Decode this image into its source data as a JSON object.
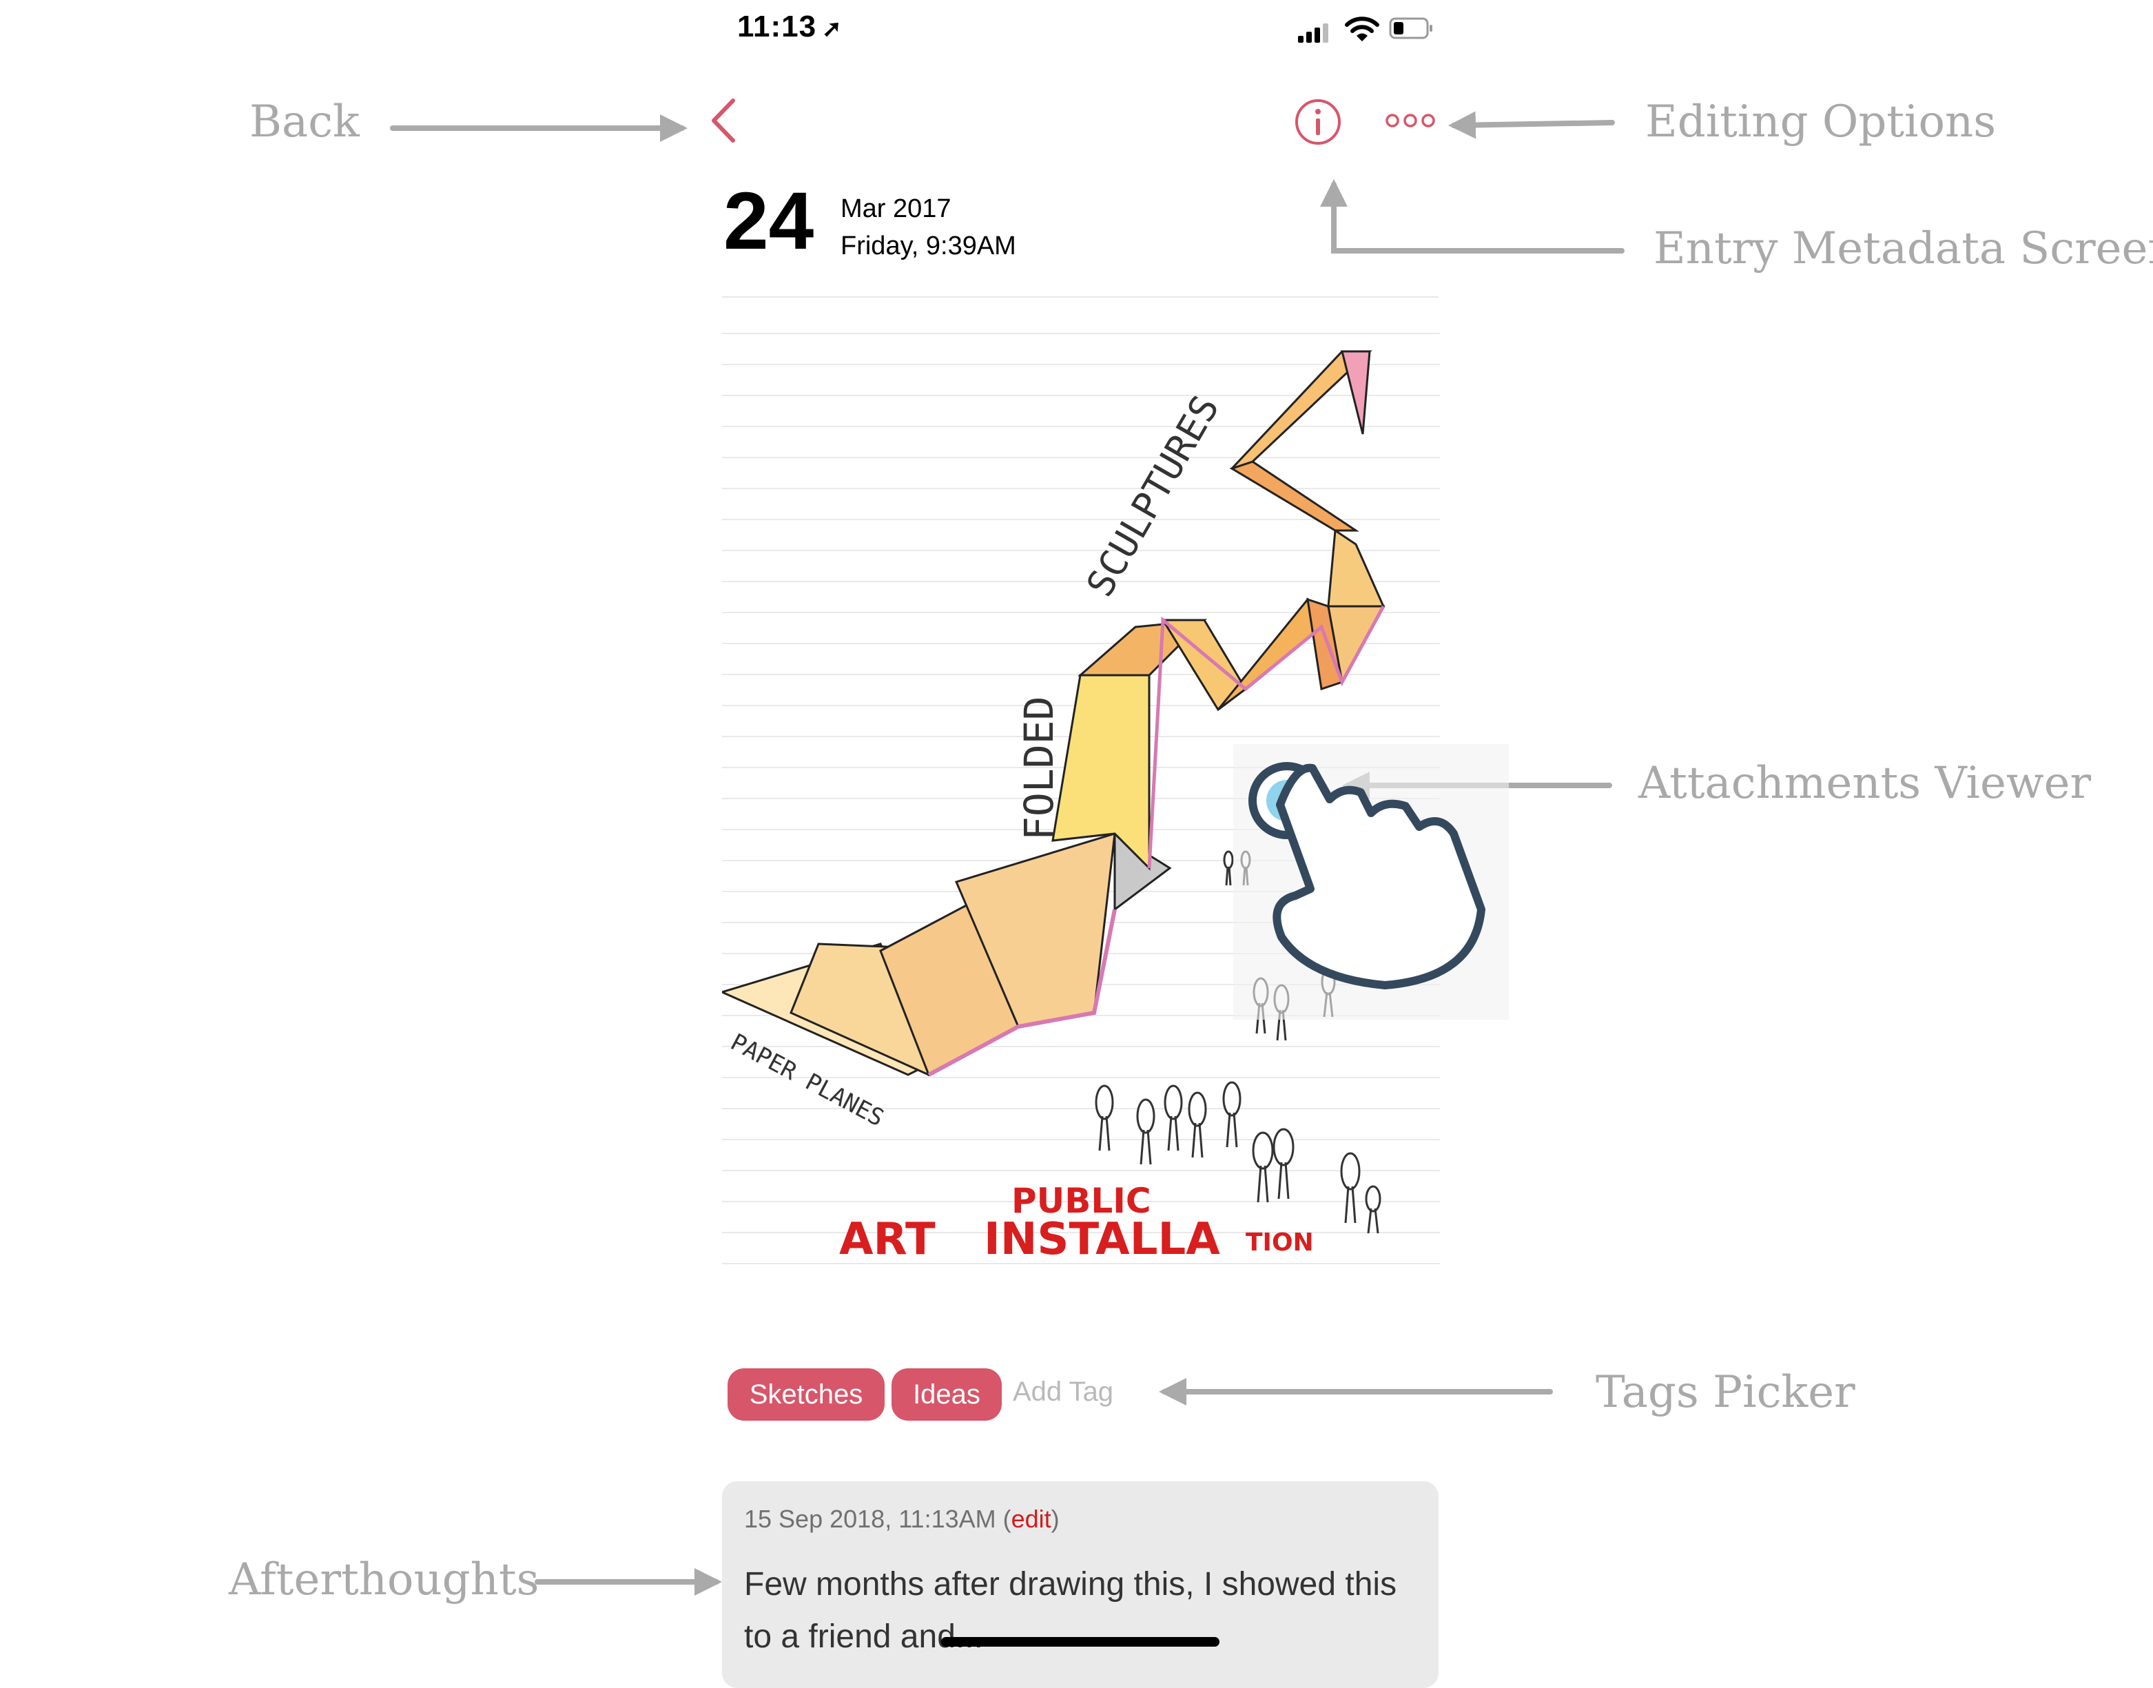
{
  "status_bar": {
    "time": "11:13",
    "location_arrow": "location-arrow-icon",
    "signal": "cellular-signal-icon",
    "wifi": "wifi-icon",
    "battery": "battery-icon"
  },
  "nav": {
    "back_icon": "chevron-left-icon",
    "info_icon": "info-icon",
    "more_icon": "more-options-icon",
    "accent_color": "#d7566a"
  },
  "entry": {
    "day": "24",
    "month_year": "Mar 2017",
    "weekday_time": "Friday, 9:39AM"
  },
  "sketch": {
    "title_word1": "FOLDED",
    "title_word2": "SCULPTURES",
    "label_planes": "PAPER PLANES",
    "caption_public": "PUBLIC",
    "caption_art": "ART",
    "caption_installation": "INSTALLA",
    "caption_tion": "TION"
  },
  "tags": {
    "items": [
      "Sketches",
      "Ideas"
    ],
    "add_placeholder": "Add Tag",
    "chip_color": "#d7566a"
  },
  "afterthought": {
    "timestamp": "15 Sep 2018, 11:13AM",
    "paren_open": "(",
    "edit_link": "edit",
    "paren_close": ")",
    "text": "Few months after drawing this, I showed this to a friend and..."
  },
  "annotations": {
    "back": "Back",
    "editing_options": "Editing Options",
    "entry_metadata": "Entry Metadata Screen",
    "attachments_viewer": "Attachments Viewer",
    "tags_picker": "Tags Picker",
    "afterthoughts": "Afterthoughts"
  }
}
